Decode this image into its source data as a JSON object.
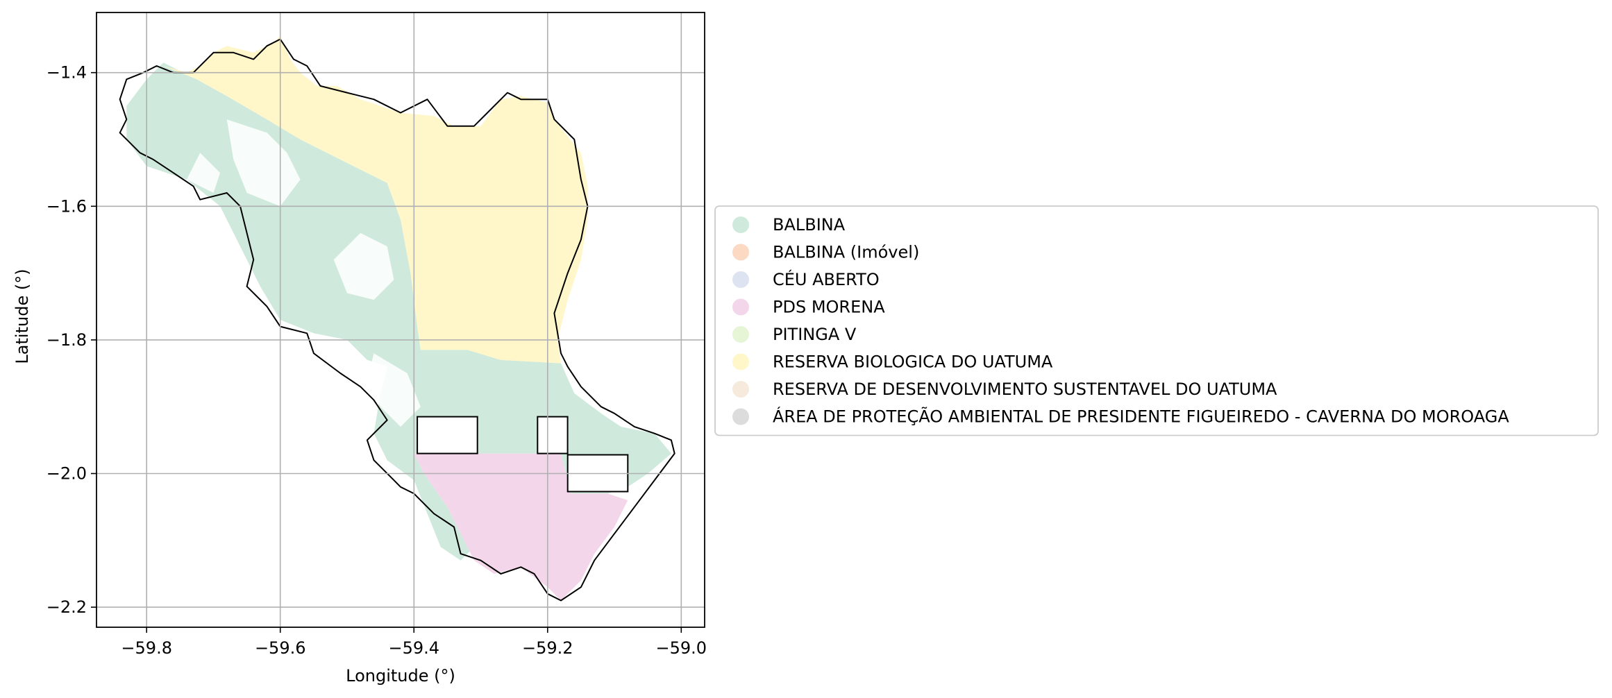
{
  "map": {
    "xlabel": "Longitude (°)",
    "ylabel": "Latitude (°)",
    "xlim": [
      -59.875,
      -58.965
    ],
    "ylim": [
      -2.23,
      -1.31
    ],
    "x_ticks": [
      {
        "value": -59.8,
        "label": "−59.8"
      },
      {
        "value": -59.6,
        "label": "−59.6"
      },
      {
        "value": -59.4,
        "label": "−59.4"
      },
      {
        "value": -59.2,
        "label": "−59.2"
      },
      {
        "value": -59.0,
        "label": "−59.0"
      }
    ],
    "y_ticks": [
      {
        "value": -1.4,
        "label": "−1.4"
      },
      {
        "value": -1.6,
        "label": "−1.6"
      },
      {
        "value": -1.8,
        "label": "−1.8"
      },
      {
        "value": -2.0,
        "label": "−2.0"
      },
      {
        "value": -2.2,
        "label": "−2.2"
      }
    ],
    "grid": true,
    "legend_placement": "center-left outside right",
    "legend": [
      {
        "label": "BALBINA",
        "color": "#cfeadc"
      },
      {
        "label": "BALBINA (Imóvel)",
        "color": "#fcd9c3"
      },
      {
        "label": "CÉU ABERTO",
        "color": "#dde3f1"
      },
      {
        "label": "PDS MORENA",
        "color": "#f4d6ea"
      },
      {
        "label": "PITINGA V",
        "color": "#e7f5d7"
      },
      {
        "label": "RESERVA BIOLOGICA DO UATUMA",
        "color": "#fff6c9"
      },
      {
        "label": "RESERVA DE DESENVOLVIMENTO SUSTENTAVEL DO UATUMA",
        "color": "#f5eadc"
      },
      {
        "label": "ÁREA DE PROTEÇÃO AMBIENTAL DE PRESIDENTE FIGUEIREDO - CAVERNA DO MOROAGA",
        "color": "#dcdcdc"
      }
    ],
    "layers": [
      {
        "name": "BALBINA",
        "color": "#cfeadc",
        "coords": [
          [
            -59.775,
            -1.385
          ],
          [
            -59.725,
            -1.41
          ],
          [
            -59.68,
            -1.435
          ],
          [
            -59.62,
            -1.47
          ],
          [
            -59.57,
            -1.5
          ],
          [
            -59.5,
            -1.535
          ],
          [
            -59.44,
            -1.565
          ],
          [
            -59.42,
            -1.62
          ],
          [
            -59.405,
            -1.7
          ],
          [
            -59.395,
            -1.78
          ],
          [
            -59.39,
            -1.815
          ],
          [
            -59.32,
            -1.815
          ],
          [
            -59.27,
            -1.83
          ],
          [
            -59.18,
            -1.835
          ],
          [
            -59.16,
            -1.88
          ],
          [
            -59.12,
            -1.91
          ],
          [
            -59.09,
            -1.93
          ],
          [
            -59.04,
            -1.94
          ],
          [
            -59.015,
            -1.97
          ],
          [
            -59.05,
            -2.0
          ],
          [
            -59.08,
            -2.02
          ],
          [
            -59.11,
            -2.03
          ],
          [
            -59.165,
            -2.03
          ],
          [
            -59.18,
            -1.97
          ],
          [
            -59.3,
            -1.97
          ],
          [
            -59.4,
            -1.97
          ],
          [
            -59.385,
            -2.0
          ],
          [
            -59.35,
            -2.05
          ],
          [
            -59.33,
            -2.09
          ],
          [
            -59.31,
            -2.11
          ],
          [
            -59.33,
            -2.13
          ],
          [
            -59.36,
            -2.11
          ],
          [
            -59.38,
            -2.06
          ],
          [
            -59.4,
            -2.01
          ],
          [
            -59.44,
            -1.98
          ],
          [
            -59.46,
            -1.94
          ],
          [
            -59.45,
            -1.88
          ],
          [
            -59.44,
            -1.84
          ],
          [
            -59.47,
            -1.83
          ],
          [
            -59.5,
            -1.8
          ],
          [
            -59.55,
            -1.79
          ],
          [
            -59.6,
            -1.77
          ],
          [
            -59.63,
            -1.72
          ],
          [
            -59.66,
            -1.66
          ],
          [
            -59.69,
            -1.6
          ],
          [
            -59.74,
            -1.56
          ],
          [
            -59.8,
            -1.54
          ],
          [
            -59.83,
            -1.5
          ],
          [
            -59.83,
            -1.45
          ],
          [
            -59.8,
            -1.41
          ]
        ]
      },
      {
        "name": "RESERVA BIOLOGICA DO UATUMA",
        "color": "#fff6c9",
        "coords": [
          [
            -59.775,
            -1.39
          ],
          [
            -59.74,
            -1.4
          ],
          [
            -59.72,
            -1.39
          ],
          [
            -59.7,
            -1.37
          ],
          [
            -59.68,
            -1.36
          ],
          [
            -59.64,
            -1.37
          ],
          [
            -59.61,
            -1.355
          ],
          [
            -59.6,
            -1.345
          ],
          [
            -59.585,
            -1.38
          ],
          [
            -59.57,
            -1.4
          ],
          [
            -59.545,
            -1.42
          ],
          [
            -59.515,
            -1.42
          ],
          [
            -59.48,
            -1.44
          ],
          [
            -59.45,
            -1.45
          ],
          [
            -59.42,
            -1.46
          ],
          [
            -59.37,
            -1.465
          ],
          [
            -59.34,
            -1.48
          ],
          [
            -59.3,
            -1.48
          ],
          [
            -59.27,
            -1.44
          ],
          [
            -59.24,
            -1.435
          ],
          [
            -59.2,
            -1.445
          ],
          [
            -59.19,
            -1.47
          ],
          [
            -59.15,
            -1.52
          ],
          [
            -59.14,
            -1.57
          ],
          [
            -59.14,
            -1.62
          ],
          [
            -59.15,
            -1.68
          ],
          [
            -59.17,
            -1.74
          ],
          [
            -59.185,
            -1.8
          ],
          [
            -59.18,
            -1.835
          ],
          [
            -59.27,
            -1.83
          ],
          [
            -59.32,
            -1.815
          ],
          [
            -59.39,
            -1.815
          ],
          [
            -59.395,
            -1.78
          ],
          [
            -59.405,
            -1.7
          ],
          [
            -59.42,
            -1.62
          ],
          [
            -59.44,
            -1.565
          ],
          [
            -59.5,
            -1.535
          ],
          [
            -59.57,
            -1.5
          ],
          [
            -59.62,
            -1.47
          ],
          [
            -59.68,
            -1.435
          ],
          [
            -59.725,
            -1.41
          ]
        ]
      },
      {
        "name": "PDS MORENA",
        "color": "#f4d6ea",
        "coords": [
          [
            -59.4,
            -1.97
          ],
          [
            -59.3,
            -1.97
          ],
          [
            -59.18,
            -1.97
          ],
          [
            -59.165,
            -2.03
          ],
          [
            -59.11,
            -2.03
          ],
          [
            -59.08,
            -2.04
          ],
          [
            -59.1,
            -2.08
          ],
          [
            -59.13,
            -2.12
          ],
          [
            -59.15,
            -2.16
          ],
          [
            -59.18,
            -2.19
          ],
          [
            -59.2,
            -2.17
          ],
          [
            -59.24,
            -2.14
          ],
          [
            -59.28,
            -2.15
          ],
          [
            -59.31,
            -2.13
          ],
          [
            -59.33,
            -2.09
          ],
          [
            -59.35,
            -2.05
          ],
          [
            -59.385,
            -2.0
          ]
        ]
      }
    ],
    "white_patches": [
      {
        "name": "north-forest-gap",
        "coords": [
          [
            -59.68,
            -1.47
          ],
          [
            -59.62,
            -1.49
          ],
          [
            -59.59,
            -1.52
          ],
          [
            -59.57,
            -1.56
          ],
          [
            -59.6,
            -1.6
          ],
          [
            -59.65,
            -1.58
          ],
          [
            -59.67,
            -1.53
          ]
        ]
      },
      {
        "name": "central-forest-gap",
        "coords": [
          [
            -59.48,
            -1.64
          ],
          [
            -59.44,
            -1.66
          ],
          [
            -59.43,
            -1.71
          ],
          [
            -59.46,
            -1.74
          ],
          [
            -59.5,
            -1.73
          ],
          [
            -59.52,
            -1.68
          ]
        ]
      },
      {
        "name": "west-forest-gap",
        "coords": [
          [
            -59.72,
            -1.52
          ],
          [
            -59.69,
            -1.55
          ],
          [
            -59.7,
            -1.58
          ],
          [
            -59.74,
            -1.56
          ]
        ]
      },
      {
        "name": "southern-channel-gap",
        "coords": [
          [
            -59.46,
            -1.82
          ],
          [
            -59.41,
            -1.85
          ],
          [
            -59.39,
            -1.9
          ],
          [
            -59.42,
            -1.93
          ],
          [
            -59.45,
            -1.9
          ],
          [
            -59.47,
            -1.86
          ]
        ]
      }
    ],
    "rectangles": [
      {
        "name": "property-outline-1",
        "x0": -59.395,
        "x1": -59.305,
        "y0": -1.97,
        "y1": -1.915
      },
      {
        "name": "property-outline-2",
        "x0": -59.215,
        "x1": -59.17,
        "y0": -1.97,
        "y1": -1.915
      },
      {
        "name": "property-outline-3",
        "x0": -59.17,
        "x1": -59.08,
        "y0": -2.027,
        "y1": -1.972
      }
    ],
    "boundary": [
      [
        -59.785,
        -1.39
      ],
      [
        -59.805,
        -1.4
      ],
      [
        -59.83,
        -1.41
      ],
      [
        -59.84,
        -1.44
      ],
      [
        -59.83,
        -1.47
      ],
      [
        -59.84,
        -1.49
      ],
      [
        -59.81,
        -1.52
      ],
      [
        -59.79,
        -1.53
      ],
      [
        -59.76,
        -1.55
      ],
      [
        -59.73,
        -1.57
      ],
      [
        -59.72,
        -1.59
      ],
      [
        -59.68,
        -1.58
      ],
      [
        -59.66,
        -1.6
      ],
      [
        -59.65,
        -1.64
      ],
      [
        -59.64,
        -1.68
      ],
      [
        -59.65,
        -1.72
      ],
      [
        -59.62,
        -1.75
      ],
      [
        -59.6,
        -1.78
      ],
      [
        -59.56,
        -1.79
      ],
      [
        -59.55,
        -1.82
      ],
      [
        -59.51,
        -1.85
      ],
      [
        -59.48,
        -1.87
      ],
      [
        -59.46,
        -1.89
      ],
      [
        -59.44,
        -1.92
      ],
      [
        -59.47,
        -1.95
      ],
      [
        -59.46,
        -1.98
      ],
      [
        -59.43,
        -2.01
      ],
      [
        -59.42,
        -2.02
      ],
      [
        -59.4,
        -2.03
      ],
      [
        -59.37,
        -2.06
      ],
      [
        -59.34,
        -2.08
      ],
      [
        -59.33,
        -2.12
      ],
      [
        -59.3,
        -2.13
      ],
      [
        -59.27,
        -2.15
      ],
      [
        -59.24,
        -2.14
      ],
      [
        -59.22,
        -2.15
      ],
      [
        -59.2,
        -2.18
      ],
      [
        -59.18,
        -2.19
      ],
      [
        -59.15,
        -2.17
      ],
      [
        -59.13,
        -2.13
      ],
      [
        -59.1,
        -2.09
      ],
      [
        -59.07,
        -2.05
      ],
      [
        -59.04,
        -2.01
      ],
      [
        -59.01,
        -1.97
      ],
      [
        -59.015,
        -1.95
      ],
      [
        -59.04,
        -1.94
      ],
      [
        -59.07,
        -1.93
      ],
      [
        -59.1,
        -1.91
      ],
      [
        -59.12,
        -1.9
      ],
      [
        -59.15,
        -1.87
      ],
      [
        -59.17,
        -1.84
      ],
      [
        -59.18,
        -1.82
      ],
      [
        -59.19,
        -1.76
      ],
      [
        -59.17,
        -1.7
      ],
      [
        -59.15,
        -1.65
      ],
      [
        -59.14,
        -1.6
      ],
      [
        -59.15,
        -1.56
      ],
      [
        -59.16,
        -1.5
      ],
      [
        -59.19,
        -1.47
      ],
      [
        -59.2,
        -1.44
      ],
      [
        -59.24,
        -1.44
      ],
      [
        -59.26,
        -1.43
      ],
      [
        -59.29,
        -1.46
      ],
      [
        -59.31,
        -1.48
      ],
      [
        -59.35,
        -1.48
      ],
      [
        -59.38,
        -1.44
      ],
      [
        -59.42,
        -1.46
      ],
      [
        -59.46,
        -1.44
      ],
      [
        -59.5,
        -1.43
      ],
      [
        -59.54,
        -1.42
      ],
      [
        -59.56,
        -1.39
      ],
      [
        -59.58,
        -1.38
      ],
      [
        -59.6,
        -1.35
      ],
      [
        -59.62,
        -1.36
      ],
      [
        -59.64,
        -1.38
      ],
      [
        -59.67,
        -1.37
      ],
      [
        -59.7,
        -1.37
      ],
      [
        -59.73,
        -1.4
      ],
      [
        -59.76,
        -1.4
      ]
    ]
  }
}
